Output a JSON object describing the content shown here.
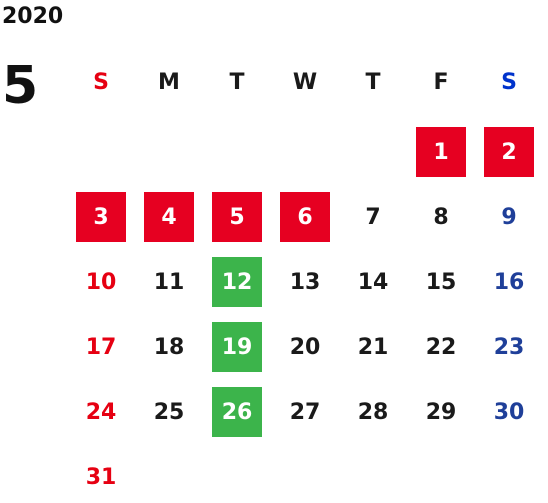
{
  "calendar": {
    "year": "2020",
    "month": "5",
    "weekdays": [
      "S",
      "M",
      "T",
      "W",
      "T",
      "F",
      "S"
    ],
    "colors": {
      "sunday": "#e60012",
      "saturday": "#1f3f99",
      "holiday_box": "#e60021",
      "green_box": "#3cb44b",
      "text": "#1a1a1a"
    },
    "weeks": [
      [
        "",
        "",
        "",
        "",
        "",
        "1",
        "2"
      ],
      [
        "3",
        "4",
        "5",
        "6",
        "7",
        "8",
        "9"
      ],
      [
        "10",
        "11",
        "12",
        "13",
        "14",
        "15",
        "16"
      ],
      [
        "17",
        "18",
        "19",
        "20",
        "21",
        "22",
        "23"
      ],
      [
        "24",
        "25",
        "26",
        "27",
        "28",
        "29",
        "30"
      ],
      [
        "31",
        "",
        "",
        "",
        "",
        "",
        ""
      ]
    ],
    "holidays": [
      "1",
      "2",
      "3",
      "4",
      "5",
      "6"
    ],
    "green_days": [
      "12",
      "19",
      "26"
    ]
  }
}
